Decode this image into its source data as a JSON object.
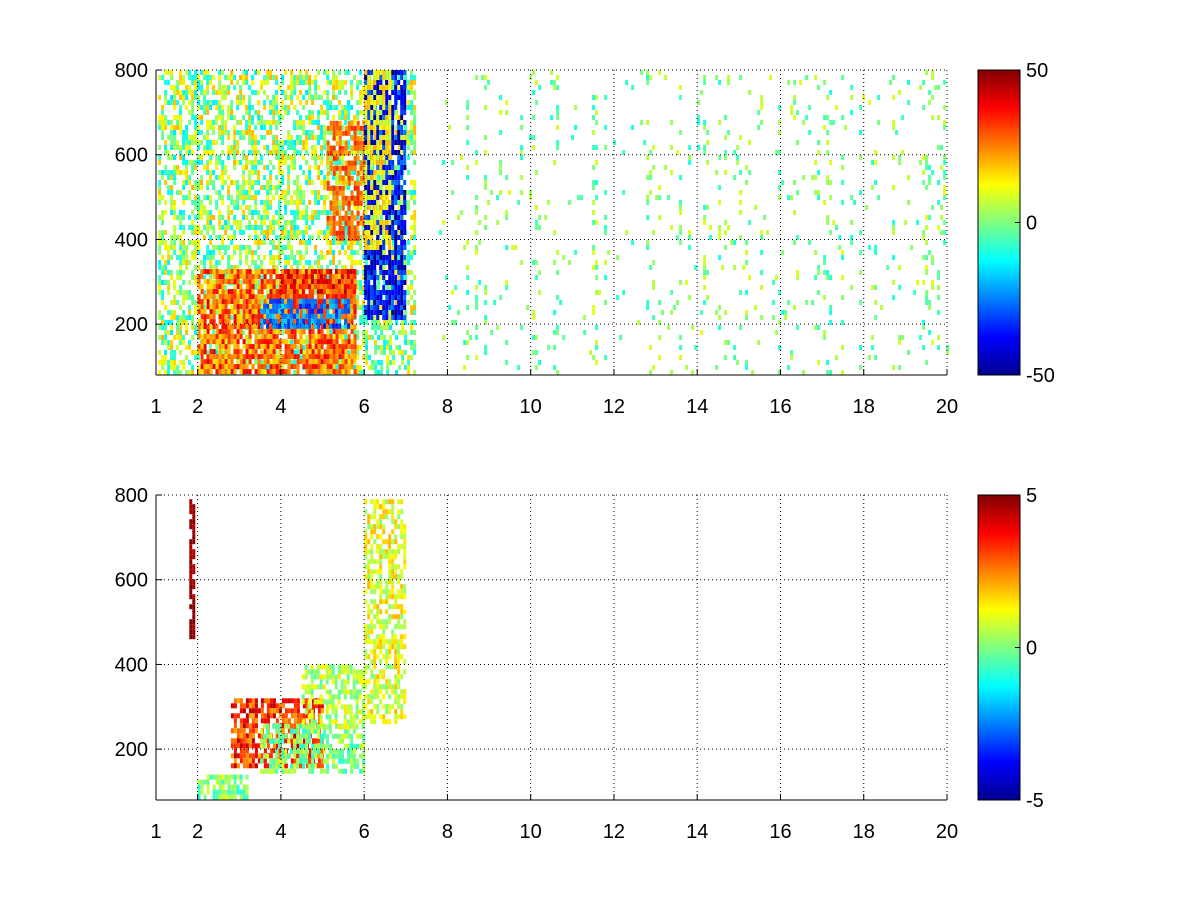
{
  "figure": {
    "background": "#ffffff"
  },
  "chart_data": [
    {
      "type": "heatmap",
      "title": "",
      "xlabel": "",
      "ylabel": "",
      "xlim": [
        1,
        20
      ],
      "ylim": [
        80,
        800
      ],
      "xticks": [
        1,
        2,
        4,
        6,
        8,
        10,
        12,
        14,
        16,
        18,
        20
      ],
      "yticks": [
        200,
        400,
        600,
        800
      ],
      "grid": true,
      "grid_style": "dotted",
      "colormap": "jet",
      "clim": [
        -50,
        50
      ],
      "colorbar": {
        "ticks": [
          -50,
          0,
          50
        ]
      },
      "background_nan": "#ffffff",
      "regions": [
        {
          "x0": 1.05,
          "x1": 7.2,
          "y0": 85,
          "y1": 800,
          "density": 0.55,
          "vmin": -15,
          "vmax": 20,
          "note": "sparse low-contrast texture"
        },
        {
          "x0": 2.0,
          "x1": 5.8,
          "y0": 90,
          "y1": 330,
          "density": 0.8,
          "vmin": 15,
          "vmax": 40
        },
        {
          "x0": 4.0,
          "x1": 5.8,
          "y0": 240,
          "y1": 330,
          "density": 0.85,
          "vmin": 20,
          "vmax": 45
        },
        {
          "x0": 5.1,
          "x1": 6.0,
          "y0": 400,
          "y1": 680,
          "density": 0.6,
          "vmin": 20,
          "vmax": 35
        },
        {
          "x0": 3.5,
          "x1": 5.6,
          "y0": 190,
          "y1": 260,
          "density": 0.7,
          "vmin": -35,
          "vmax": -15
        },
        {
          "x0": 6.0,
          "x1": 7.0,
          "y0": 220,
          "y1": 800,
          "density": 0.75,
          "vmin": -50,
          "vmax": -25
        },
        {
          "x0": 6.0,
          "x1": 6.6,
          "y0": 380,
          "y1": 800,
          "density": 0.6,
          "vmin": 5,
          "vmax": 20
        },
        {
          "x0": 7.8,
          "x1": 20,
          "y0": 85,
          "y1": 800,
          "density": 0.18,
          "vmin": -10,
          "vmax": 10,
          "note": "vertical streaks"
        }
      ]
    },
    {
      "type": "heatmap",
      "title": "",
      "xlabel": "",
      "ylabel": "",
      "xlim": [
        1,
        20
      ],
      "ylim": [
        80,
        800
      ],
      "xticks": [
        1,
        2,
        4,
        6,
        8,
        10,
        12,
        14,
        16,
        18,
        20
      ],
      "yticks": [
        200,
        400,
        600,
        800
      ],
      "grid": true,
      "grid_style": "dotted",
      "colormap": "jet",
      "clim": [
        -5,
        5
      ],
      "colorbar": {
        "ticks": [
          -5,
          0,
          5
        ]
      },
      "background_nan": "#ffffff",
      "regions": [
        {
          "x0": 1.8,
          "x1": 1.9,
          "y0": 460,
          "y1": 790,
          "density": 0.9,
          "vmin": 4.5,
          "vmax": 5
        },
        {
          "x0": 2.0,
          "x1": 3.2,
          "y0": 90,
          "y1": 140,
          "density": 0.7,
          "vmin": -1,
          "vmax": 1
        },
        {
          "x0": 2.8,
          "x1": 5.0,
          "y0": 160,
          "y1": 320,
          "density": 0.7,
          "vmin": 2,
          "vmax": 4.5
        },
        {
          "x0": 3.5,
          "x1": 6.0,
          "y0": 150,
          "y1": 260,
          "density": 0.6,
          "vmin": -1,
          "vmax": 1
        },
        {
          "x0": 4.5,
          "x1": 6.0,
          "y0": 250,
          "y1": 400,
          "density": 0.6,
          "vmin": -0.5,
          "vmax": 1.5
        },
        {
          "x0": 6.0,
          "x1": 7.0,
          "y0": 270,
          "y1": 790,
          "density": 0.6,
          "vmin": 0,
          "vmax": 2
        }
      ]
    }
  ]
}
